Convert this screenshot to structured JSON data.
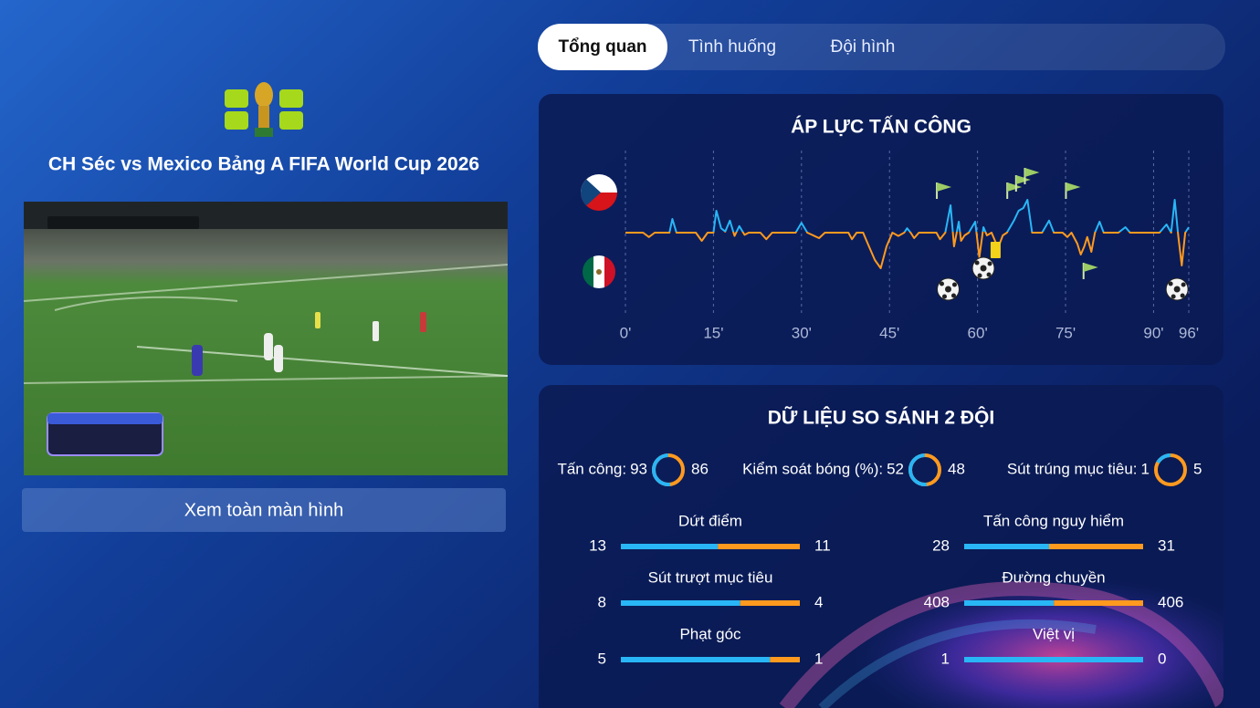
{
  "match": {
    "title": "CH Séc vs Mexico Bảng A FIFA World Cup 2026",
    "fullscreen_button": "Xem toàn màn hình"
  },
  "tabs": [
    "Tổng quan",
    "Tình huống",
    "Đội hình"
  ],
  "active_tab": 0,
  "pressure": {
    "title": "ÁP LỰC TẤN CÔNG",
    "xlim": [
      0,
      96
    ],
    "ylim": [
      -100,
      100
    ],
    "xticks": [
      {
        "value": 0,
        "label": "0'"
      },
      {
        "value": 15,
        "label": "15'"
      },
      {
        "value": 30,
        "label": "30'"
      },
      {
        "value": 45,
        "label": "45'"
      },
      {
        "value": 60,
        "label": "60'"
      },
      {
        "value": 75,
        "label": "75'"
      },
      {
        "value": 90,
        "label": "90'"
      },
      {
        "value": 96,
        "label": "96'"
      }
    ],
    "home_color": "#29b6f6",
    "away_color": "#ff9a1f",
    "x": [
      0,
      3,
      4,
      5,
      7.5,
      8,
      8.7,
      12,
      13,
      14,
      15,
      15.5,
      16.3,
      17,
      17.8,
      18.6,
      19.4,
      20.3,
      21,
      23,
      24,
      25,
      29,
      30,
      31,
      33,
      34,
      38,
      38.6,
      39.4,
      40.5,
      41.5,
      42.5,
      43.5,
      44.5,
      45.5,
      46.5,
      47.5,
      48,
      48.6,
      49.2,
      50,
      53,
      53.6,
      54.5,
      55.4,
      56,
      56.8,
      57.2,
      57.8,
      58.5,
      59.6,
      60.3,
      61,
      61.6,
      62.4,
      63.5,
      64.3,
      65,
      66.2,
      67,
      67.8,
      68.5,
      69.3,
      71,
      72.2,
      73,
      74.5,
      75.3,
      76,
      77,
      77.6,
      78.2,
      78.7,
      79.4,
      80,
      80.8,
      81.5,
      84,
      85.2,
      86,
      91,
      92.2,
      93,
      93.6,
      94.2,
      94.8,
      95.4,
      96
    ],
    "values": [
      0,
      0,
      -8,
      0,
      0,
      25,
      0,
      0,
      -15,
      0,
      0,
      40,
      8,
      2,
      22,
      -6,
      12,
      -4,
      0,
      0,
      -12,
      0,
      0,
      18,
      0,
      -10,
      0,
      0,
      -12,
      0,
      0,
      -25,
      -50,
      -65,
      -25,
      0,
      -6,
      0,
      8,
      0,
      -10,
      0,
      0,
      -12,
      0,
      50,
      -25,
      20,
      -15,
      -5,
      0,
      20,
      -45,
      10,
      -5,
      0,
      -28,
      -5,
      0,
      22,
      40,
      45,
      60,
      0,
      0,
      22,
      0,
      0,
      -8,
      0,
      -20,
      -40,
      -25,
      -8,
      -35,
      0,
      20,
      0,
      0,
      10,
      0,
      0,
      15,
      0,
      60,
      -5,
      -60,
      0,
      10
    ],
    "corners": {
      "home": [
        54,
        66,
        67.5,
        69,
        76
      ],
      "away": [
        79
      ]
    },
    "goals": [
      55,
      61,
      94
    ],
    "yellow_cards": [
      63
    ]
  },
  "compare": {
    "title": "DỮ LIỆU SO SÁNH 2 ĐỘI",
    "rings": [
      {
        "label": "Tấn công:",
        "home": 93,
        "away": 86
      },
      {
        "label": "Kiểm soát bóng (%):",
        "home": 52,
        "away": 48
      },
      {
        "label": "Sút trúng mục tiêu:",
        "home": 1,
        "away": 5
      }
    ],
    "bars": [
      {
        "label": "Dứt điểm",
        "home": 13,
        "away": 11
      },
      {
        "label": "Tấn công nguy hiểm",
        "home": 28,
        "away": 31
      },
      {
        "label": "Sút trượt mục tiêu",
        "home": 8,
        "away": 4
      },
      {
        "label": "Đường chuyền",
        "home": 408,
        "away": 406
      },
      {
        "label": "Phạt góc",
        "home": 5,
        "away": 1
      },
      {
        "label": "Việt vị",
        "home": 1,
        "away": 0
      }
    ]
  }
}
